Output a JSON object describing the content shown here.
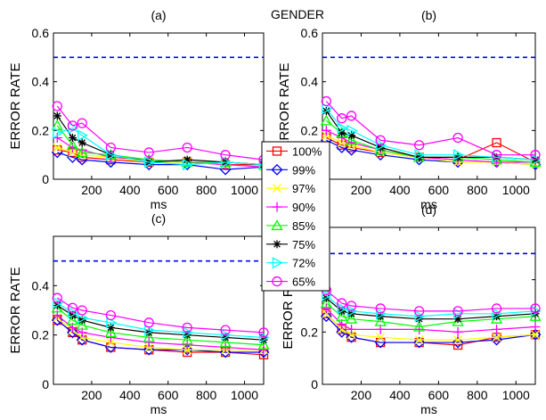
{
  "figure_title": "GENDER",
  "legend": {
    "placement": "center",
    "entries": [
      {
        "label": "100%",
        "color": "#ff0000",
        "marker": "square"
      },
      {
        "label": "99%",
        "color": "#0000ff",
        "marker": "diamond"
      },
      {
        "label": "97%",
        "color": "#ffff00",
        "marker": "x"
      },
      {
        "label": "90%",
        "color": "#ff00ff",
        "marker": "plus"
      },
      {
        "label": "85%",
        "color": "#00ff00",
        "marker": "triangle-up"
      },
      {
        "label": "75%",
        "color": "#000000",
        "marker": "star"
      },
      {
        "label": "72%",
        "color": "#00ffff",
        "marker": "triangle-right"
      },
      {
        "label": "65%",
        "color": "#ff00ff",
        "marker": "circle"
      }
    ]
  },
  "chart_data": [
    {
      "type": "line",
      "title": "(a)",
      "xlabel": "ms",
      "ylabel": "ERROR RATE",
      "xlim": [
        0,
        1100
      ],
      "ylim": [
        0,
        0.6
      ],
      "xticks": [
        200,
        400,
        600,
        800,
        1000
      ],
      "yticks": [
        0,
        0.2,
        0.4,
        0.6
      ],
      "ytick_labels": [
        "0",
        "0.2",
        "0.4",
        "0.6"
      ],
      "reference_line": {
        "y": 0.5,
        "color": "#0000ff",
        "style": "dashed"
      },
      "x": [
        20,
        100,
        150,
        300,
        500,
        700,
        900,
        1100
      ],
      "series": [
        {
          "name": "100%",
          "values": [
            0.12,
            0.11,
            0.09,
            0.08,
            0.07,
            0.07,
            0.06,
            0.06
          ]
        },
        {
          "name": "99%",
          "values": [
            0.11,
            0.09,
            0.08,
            0.07,
            0.06,
            0.06,
            0.04,
            0.05
          ]
        },
        {
          "name": "97%",
          "values": [
            0.13,
            0.11,
            0.1,
            0.09,
            0.07,
            0.07,
            0.06,
            0.05
          ]
        },
        {
          "name": "90%",
          "values": [
            0.17,
            0.13,
            0.12,
            0.09,
            0.08,
            0.07,
            0.06,
            0.05
          ]
        },
        {
          "name": "85%",
          "values": [
            0.22,
            0.14,
            0.11,
            0.1,
            0.08,
            0.07,
            0.07,
            0.06
          ]
        },
        {
          "name": "75%",
          "values": [
            0.26,
            0.17,
            0.15,
            0.1,
            0.07,
            0.08,
            0.07,
            0.06
          ]
        },
        {
          "name": "72%",
          "values": [
            0.19,
            0.21,
            0.18,
            0.1,
            0.07,
            0.06,
            0.07,
            0.06
          ]
        },
        {
          "name": "65%",
          "values": [
            0.3,
            0.22,
            0.23,
            0.13,
            0.11,
            0.13,
            0.1,
            0.08
          ]
        }
      ]
    },
    {
      "type": "line",
      "title": "(b)",
      "xlabel": "ms",
      "ylabel": "ERROR RATE",
      "xlim": [
        0,
        1100
      ],
      "ylim": [
        0,
        0.6
      ],
      "xticks": [
        200,
        400,
        600,
        800,
        1000
      ],
      "yticks": [
        0,
        0.2,
        0.4,
        0.6
      ],
      "ytick_labels": [
        "0",
        "0.2",
        "0.4",
        "0.6"
      ],
      "reference_line": {
        "y": 0.5,
        "color": "#0000ff",
        "style": "dashed"
      },
      "x": [
        20,
        100,
        150,
        300,
        500,
        700,
        900,
        1100
      ],
      "series": [
        {
          "name": "100%",
          "values": [
            0.17,
            0.14,
            0.13,
            0.11,
            0.09,
            0.08,
            0.15,
            0.07
          ]
        },
        {
          "name": "99%",
          "values": [
            0.16,
            0.13,
            0.12,
            0.1,
            0.08,
            0.07,
            0.07,
            0.06
          ]
        },
        {
          "name": "97%",
          "values": [
            0.18,
            0.15,
            0.14,
            0.11,
            0.09,
            0.07,
            0.07,
            0.06
          ]
        },
        {
          "name": "90%",
          "values": [
            0.2,
            0.17,
            0.15,
            0.12,
            0.09,
            0.08,
            0.07,
            0.07
          ]
        },
        {
          "name": "85%",
          "values": [
            0.24,
            0.19,
            0.16,
            0.12,
            0.09,
            0.09,
            0.08,
            0.07
          ]
        },
        {
          "name": "75%",
          "values": [
            0.28,
            0.19,
            0.18,
            0.13,
            0.09,
            0.09,
            0.09,
            0.08
          ]
        },
        {
          "name": "72%",
          "values": [
            0.29,
            0.21,
            0.2,
            0.14,
            0.1,
            0.1,
            0.09,
            0.08
          ]
        },
        {
          "name": "65%",
          "values": [
            0.32,
            0.25,
            0.26,
            0.16,
            0.14,
            0.17,
            0.1,
            0.1
          ]
        }
      ]
    },
    {
      "type": "line",
      "title": "(c)",
      "xlabel": "ms",
      "ylabel": "ERROR RATE",
      "xlim": [
        0,
        1100
      ],
      "ylim": [
        0,
        0.6
      ],
      "xticks": [
        200,
        400,
        600,
        800,
        1000
      ],
      "yticks": [
        0,
        0.2,
        0.4
      ],
      "ytick_labels": [
        "0",
        "0.2",
        "0.4"
      ],
      "reference_line": {
        "y": 0.5,
        "color": "#0000ff",
        "style": "dashed"
      },
      "x": [
        20,
        100,
        150,
        300,
        500,
        700,
        900,
        1100
      ],
      "series": [
        {
          "name": "100%",
          "values": [
            0.26,
            0.21,
            0.18,
            0.15,
            0.14,
            0.13,
            0.13,
            0.12
          ]
        },
        {
          "name": "99%",
          "values": [
            0.26,
            0.21,
            0.18,
            0.15,
            0.14,
            0.14,
            0.13,
            0.13
          ]
        },
        {
          "name": "97%",
          "values": [
            0.27,
            0.22,
            0.19,
            0.17,
            0.15,
            0.14,
            0.14,
            0.14
          ]
        },
        {
          "name": "90%",
          "values": [
            0.28,
            0.23,
            0.21,
            0.19,
            0.17,
            0.16,
            0.15,
            0.14
          ]
        },
        {
          "name": "85%",
          "values": [
            0.31,
            0.26,
            0.24,
            0.21,
            0.19,
            0.18,
            0.17,
            0.16
          ]
        },
        {
          "name": "75%",
          "values": [
            0.32,
            0.28,
            0.26,
            0.23,
            0.21,
            0.2,
            0.19,
            0.18
          ]
        },
        {
          "name": "72%",
          "values": [
            0.33,
            0.29,
            0.27,
            0.25,
            0.22,
            0.21,
            0.2,
            0.19
          ]
        },
        {
          "name": "65%",
          "values": [
            0.35,
            0.31,
            0.3,
            0.28,
            0.25,
            0.23,
            0.22,
            0.21
          ]
        }
      ]
    },
    {
      "type": "line",
      "title": "(d)",
      "xlabel": "ms",
      "ylabel": "ERROR RATE",
      "xlim": [
        0,
        1100
      ],
      "ylim": [
        0,
        0.6
      ],
      "xticks": [
        200,
        400,
        600,
        800,
        1000
      ],
      "yticks": [
        0,
        0.2,
        0.4
      ],
      "ytick_labels": [
        "0",
        "0.2",
        "0.4"
      ],
      "reference_line": {
        "y": 0.5,
        "color": "#0000ff",
        "style": "dashed"
      },
      "x": [
        20,
        100,
        150,
        300,
        500,
        700,
        900,
        1100
      ],
      "series": [
        {
          "name": "100%",
          "values": [
            0.27,
            0.21,
            0.18,
            0.16,
            0.16,
            0.15,
            0.18,
            0.19
          ]
        },
        {
          "name": "99%",
          "values": [
            0.26,
            0.2,
            0.18,
            0.16,
            0.16,
            0.16,
            0.17,
            0.19
          ]
        },
        {
          "name": "97%",
          "values": [
            0.27,
            0.21,
            0.19,
            0.18,
            0.17,
            0.17,
            0.18,
            0.19
          ]
        },
        {
          "name": "90%",
          "values": [
            0.29,
            0.23,
            0.21,
            0.21,
            0.21,
            0.2,
            0.21,
            0.22
          ]
        },
        {
          "name": "85%",
          "values": [
            0.31,
            0.26,
            0.25,
            0.24,
            0.22,
            0.24,
            0.25,
            0.26
          ]
        },
        {
          "name": "75%",
          "values": [
            0.33,
            0.28,
            0.27,
            0.26,
            0.25,
            0.25,
            0.26,
            0.27
          ]
        },
        {
          "name": "72%",
          "values": [
            0.34,
            0.29,
            0.28,
            0.27,
            0.26,
            0.27,
            0.27,
            0.28
          ]
        },
        {
          "name": "65%",
          "values": [
            0.36,
            0.31,
            0.3,
            0.29,
            0.28,
            0.28,
            0.29,
            0.29
          ]
        }
      ]
    }
  ]
}
